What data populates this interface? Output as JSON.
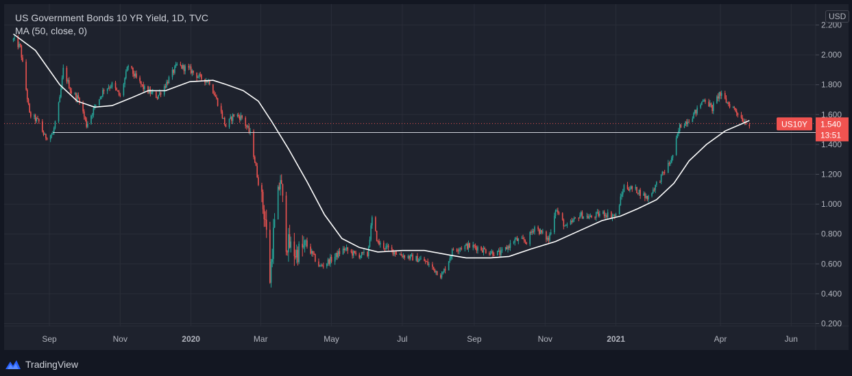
{
  "legend": {
    "title": "US Government Bonds 10 YR Yield, 1D, TVC",
    "ma": "MA (50, close, 0)"
  },
  "currency": "USD",
  "footer": {
    "brand": "TradingView",
    "logo_icon": "tradingview-logo-icon"
  },
  "colors": {
    "background": "#131722",
    "panel": "#1e222d",
    "up": "#26a69a",
    "down": "#ef5350",
    "ma": "#ffffff",
    "label": "#f05350"
  },
  "chart_data": {
    "type": "candlestick",
    "ylim": [
      0.15,
      2.3
    ],
    "y_ticks": [
      "2.200",
      "2.000",
      "1.800",
      "1.600",
      "1.400",
      "1.200",
      "1.000",
      "0.800",
      "0.600",
      "0.400",
      "0.200"
    ],
    "x_ticks": [
      "Sep",
      "Nov",
      "2020",
      "Mar",
      "May",
      "Jul",
      "Sep",
      "Nov",
      "2021",
      "Apr",
      "Jun"
    ],
    "x_range": [
      "2019-08-01",
      "2021-06-30"
    ],
    "grid": true,
    "price_series": [
      [
        "2019-08-01",
        2.1
      ],
      [
        "2019-08-07",
        2.05
      ],
      [
        "2019-08-15",
        1.6
      ],
      [
        "2019-08-23",
        1.55
      ],
      [
        "2019-08-28",
        1.45
      ],
      [
        "2019-09-04",
        1.47
      ],
      [
        "2019-09-10",
        1.7
      ],
      [
        "2019-09-13",
        1.9
      ],
      [
        "2019-09-20",
        1.75
      ],
      [
        "2019-09-27",
        1.7
      ],
      [
        "2019-10-03",
        1.53
      ],
      [
        "2019-10-10",
        1.65
      ],
      [
        "2019-10-18",
        1.77
      ],
      [
        "2019-10-25",
        1.8
      ],
      [
        "2019-11-01",
        1.72
      ],
      [
        "2019-11-08",
        1.93
      ],
      [
        "2019-11-15",
        1.84
      ],
      [
        "2019-11-22",
        1.77
      ],
      [
        "2019-12-03",
        1.72
      ],
      [
        "2019-12-10",
        1.8
      ],
      [
        "2019-12-20",
        1.93
      ],
      [
        "2019-12-31",
        1.9
      ],
      [
        "2020-01-08",
        1.85
      ],
      [
        "2020-01-17",
        1.82
      ],
      [
        "2020-01-24",
        1.68
      ],
      [
        "2020-01-31",
        1.52
      ],
      [
        "2020-02-07",
        1.6
      ],
      [
        "2020-02-14",
        1.58
      ],
      [
        "2020-02-21",
        1.47
      ],
      [
        "2020-02-28",
        1.15
      ],
      [
        "2020-03-05",
        0.9
      ],
      [
        "2020-03-09",
        0.5
      ],
      [
        "2020-03-12",
        0.8
      ],
      [
        "2020-03-18",
        1.18
      ],
      [
        "2020-03-23",
        0.75
      ],
      [
        "2020-03-31",
        0.67
      ],
      [
        "2020-04-10",
        0.72
      ],
      [
        "2020-04-21",
        0.58
      ],
      [
        "2020-05-01",
        0.63
      ],
      [
        "2020-05-12",
        0.7
      ],
      [
        "2020-05-22",
        0.66
      ],
      [
        "2020-06-01",
        0.66
      ],
      [
        "2020-06-05",
        0.9
      ],
      [
        "2020-06-10",
        0.74
      ],
      [
        "2020-06-19",
        0.7
      ],
      [
        "2020-06-30",
        0.66
      ],
      [
        "2020-07-10",
        0.64
      ],
      [
        "2020-07-20",
        0.62
      ],
      [
        "2020-08-04",
        0.52
      ],
      [
        "2020-08-14",
        0.7
      ],
      [
        "2020-08-26",
        0.72
      ],
      [
        "2020-09-04",
        0.71
      ],
      [
        "2020-09-14",
        0.68
      ],
      [
        "2020-09-24",
        0.67
      ],
      [
        "2020-10-06",
        0.76
      ],
      [
        "2020-10-16",
        0.75
      ],
      [
        "2020-10-23",
        0.85
      ],
      [
        "2020-11-04",
        0.76
      ],
      [
        "2020-11-10",
        0.97
      ],
      [
        "2020-11-19",
        0.84
      ],
      [
        "2020-12-01",
        0.93
      ],
      [
        "2020-12-10",
        0.91
      ],
      [
        "2020-12-20",
        0.94
      ],
      [
        "2021-01-01",
        0.92
      ],
      [
        "2021-01-08",
        1.12
      ],
      [
        "2021-01-20",
        1.09
      ],
      [
        "2021-01-28",
        1.04
      ],
      [
        "2021-02-08",
        1.17
      ],
      [
        "2021-02-18",
        1.3
      ],
      [
        "2021-02-25",
        1.52
      ],
      [
        "2021-03-05",
        1.57
      ],
      [
        "2021-03-12",
        1.63
      ],
      [
        "2021-03-18",
        1.71
      ],
      [
        "2021-03-25",
        1.64
      ],
      [
        "2021-03-31",
        1.74
      ],
      [
        "2021-04-07",
        1.68
      ],
      [
        "2021-04-14",
        1.63
      ],
      [
        "2021-04-21",
        1.56
      ],
      [
        "2021-04-26",
        1.54
      ]
    ],
    "ma_series": [
      [
        "2019-08-01",
        2.14
      ],
      [
        "2019-08-20",
        2.03
      ],
      [
        "2019-09-10",
        1.8
      ],
      [
        "2019-09-25",
        1.69
      ],
      [
        "2019-10-10",
        1.65
      ],
      [
        "2019-10-25",
        1.66
      ],
      [
        "2019-11-10",
        1.71
      ],
      [
        "2019-11-25",
        1.76
      ],
      [
        "2019-12-10",
        1.76
      ],
      [
        "2019-12-31",
        1.82
      ],
      [
        "2020-01-20",
        1.83
      ],
      [
        "2020-02-01",
        1.8
      ],
      [
        "2020-02-15",
        1.76
      ],
      [
        "2020-02-28",
        1.69
      ],
      [
        "2020-03-10",
        1.56
      ],
      [
        "2020-03-25",
        1.37
      ],
      [
        "2020-04-10",
        1.15
      ],
      [
        "2020-04-25",
        0.93
      ],
      [
        "2020-05-10",
        0.77
      ],
      [
        "2020-05-25",
        0.71
      ],
      [
        "2020-06-10",
        0.68
      ],
      [
        "2020-07-01",
        0.69
      ],
      [
        "2020-07-20",
        0.69
      ],
      [
        "2020-08-10",
        0.66
      ],
      [
        "2020-08-25",
        0.64
      ],
      [
        "2020-09-15",
        0.64
      ],
      [
        "2020-10-01",
        0.65
      ],
      [
        "2020-10-20",
        0.7
      ],
      [
        "2020-11-10",
        0.75
      ],
      [
        "2020-11-30",
        0.82
      ],
      [
        "2020-12-20",
        0.89
      ],
      [
        "2021-01-05",
        0.92
      ],
      [
        "2021-01-20",
        0.97
      ],
      [
        "2021-02-05",
        1.03
      ],
      [
        "2021-02-20",
        1.14
      ],
      [
        "2021-03-05",
        1.29
      ],
      [
        "2021-03-20",
        1.4
      ],
      [
        "2021-04-05",
        1.49
      ],
      [
        "2021-04-26",
        1.56
      ]
    ],
    "horizontal_line": {
      "value": 1.48,
      "from": "2019-09-04",
      "to": "2021-06-30"
    },
    "last_price": {
      "symbol": "US10Y",
      "price": "1.540",
      "value": 1.54,
      "countdown": "13:51"
    }
  }
}
